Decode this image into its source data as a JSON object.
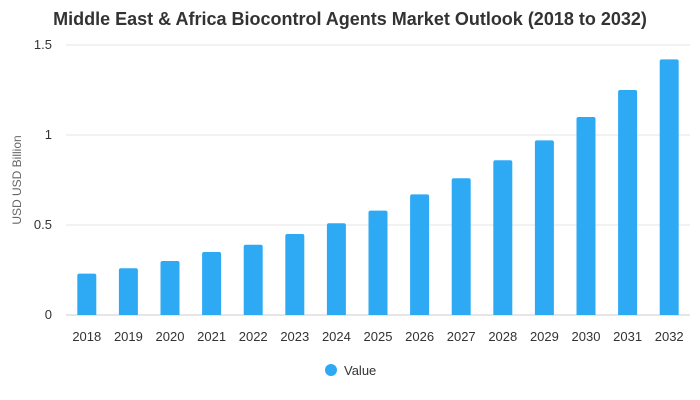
{
  "chart_data": {
    "type": "bar",
    "title": "Middle East & Africa Biocontrol Agents Market Outlook (2018 to 2032)",
    "xlabel": "",
    "ylabel": "USD USD Billion",
    "categories": [
      "2018",
      "2019",
      "2020",
      "2021",
      "2022",
      "2023",
      "2024",
      "2025",
      "2026",
      "2027",
      "2028",
      "2029",
      "2030",
      "2031",
      "2032"
    ],
    "series": [
      {
        "name": "Value",
        "values": [
          0.23,
          0.26,
          0.3,
          0.35,
          0.39,
          0.45,
          0.51,
          0.58,
          0.67,
          0.76,
          0.86,
          0.97,
          1.1,
          1.25,
          1.42
        ]
      }
    ],
    "ylim": [
      0,
      1.5
    ],
    "yticks": [
      "0",
      "0.5",
      "1",
      "1.5"
    ],
    "ytick_values": [
      0,
      0.5,
      1,
      1.5
    ],
    "grid": true,
    "legend": "bottom-center",
    "colors": {
      "bar": "#2eaaf5"
    }
  }
}
